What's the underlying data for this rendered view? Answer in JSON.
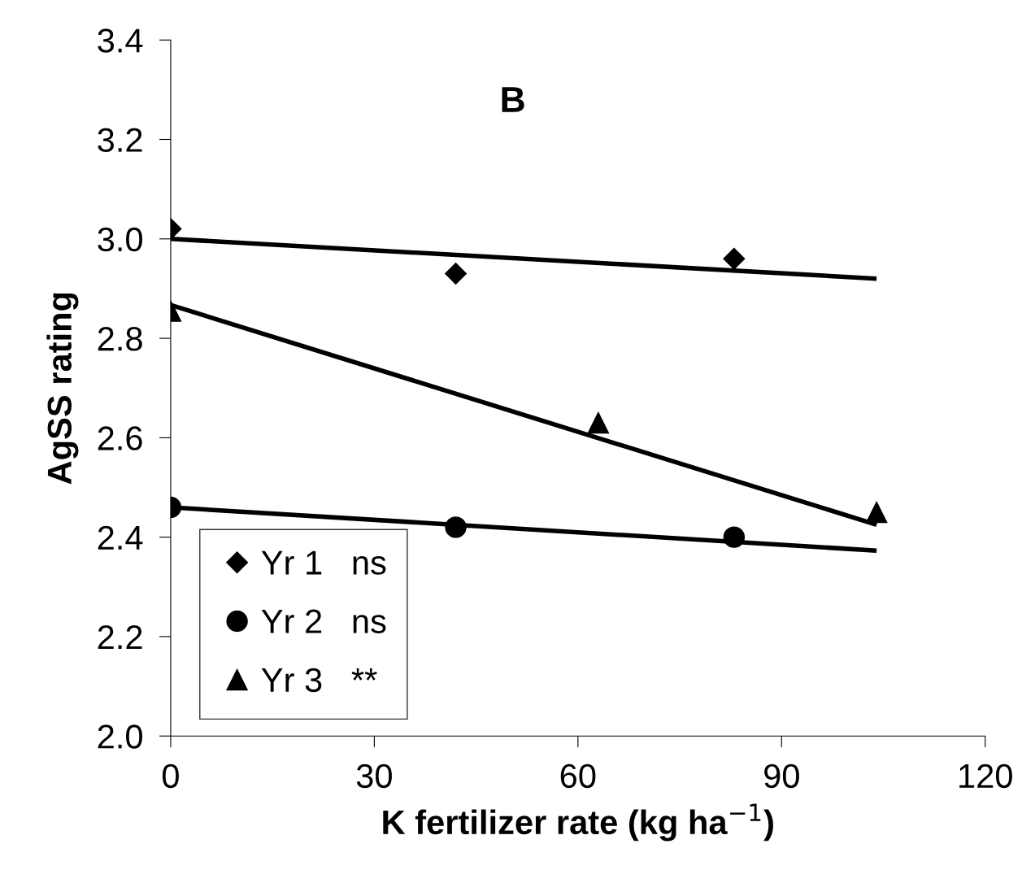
{
  "chart_data": {
    "type": "scatter",
    "xlabel": "K fertilizer rate (kg ha$^{−1}$)",
    "ylabel": "AgSS rating",
    "annotations": [
      "B"
    ],
    "xlim": [
      0,
      120
    ],
    "xticks": [
      0,
      30,
      60,
      90,
      120
    ],
    "ylim": [
      2.0,
      3.4
    ],
    "yticks": [
      {
        "value": 2,
        "label": "2.0"
      },
      2.2,
      2.4,
      2.6,
      2.8,
      {
        "value": 3,
        "label": "3.0"
      },
      3.2,
      3.4
    ],
    "grid": false,
    "legend": "bottom left",
    "series": [
      {
        "name": "Yr 1   ns",
        "marker": "diamond",
        "color": "#000000",
        "x": [
          0,
          42,
          83
        ],
        "values": [
          3.02,
          2.93,
          2.96
        ]
      },
      {
        "name": "Yr 2   ns",
        "marker": "circle",
        "color": "#000000",
        "x": [
          0,
          42,
          83
        ],
        "values": [
          2.46,
          2.42,
          2.4
        ]
      },
      {
        "name": "Yr 3   **",
        "marker": "triangle",
        "color": "#000000",
        "x": [
          0,
          63,
          104
        ],
        "values": [
          2.855,
          2.63,
          2.45
        ]
      },
      {
        "type": "line",
        "marker": "none",
        "line_style": "solid",
        "color": "#000000",
        "x": [
          0,
          104
        ],
        "values": [
          3.0,
          2.92
        ]
      },
      {
        "type": "line",
        "marker": "none",
        "line_style": "solid",
        "color": "#000000",
        "x": [
          0,
          104
        ],
        "values": [
          2.46,
          2.373
        ]
      },
      {
        "type": "line",
        "marker": "none",
        "line_style": "solid",
        "color": "#000000",
        "x": [
          0,
          104
        ],
        "values": [
          2.867,
          2.425
        ]
      }
    ]
  }
}
